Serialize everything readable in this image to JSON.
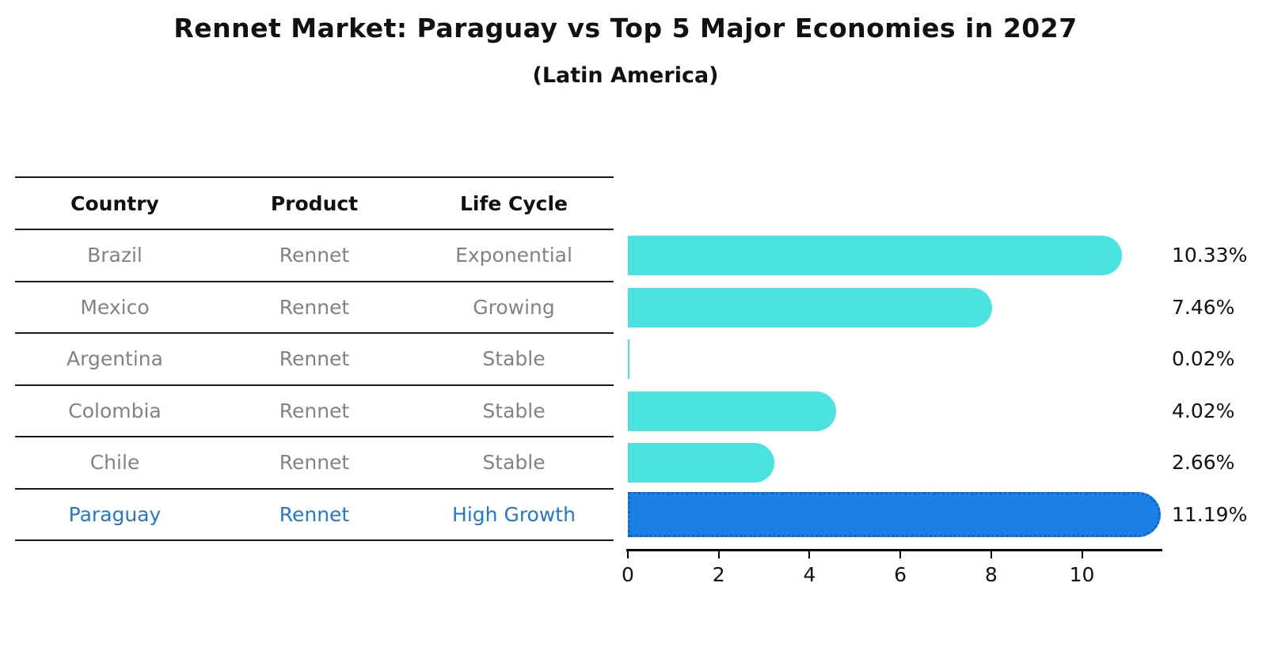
{
  "title": "Rennet Market: Paraguay vs Top 5 Major Economies in 2027",
  "subtitle": "(Latin America)",
  "table": {
    "headers": [
      "Country",
      "Product",
      "Life Cycle"
    ],
    "rows": [
      {
        "country": "Brazil",
        "product": "Rennet",
        "life_cycle": "Exponential",
        "highlight": false
      },
      {
        "country": "Mexico",
        "product": "Rennet",
        "life_cycle": "Growing",
        "highlight": false
      },
      {
        "country": "Argentina",
        "product": "Rennet",
        "life_cycle": "Stable",
        "highlight": false
      },
      {
        "country": "Colombia",
        "product": "Rennet",
        "life_cycle": "Stable",
        "highlight": false
      },
      {
        "country": "Chile",
        "product": "Rennet",
        "life_cycle": "Stable",
        "highlight": false
      },
      {
        "country": "Paraguay",
        "product": "Rennet",
        "life_cycle": "High Growth",
        "highlight": true
      }
    ]
  },
  "chart_data": {
    "type": "bar",
    "orientation": "horizontal",
    "title": "Rennet Market: Paraguay vs Top 5 Major Economies in 2027",
    "subtitle": "(Latin America)",
    "categories": [
      "Brazil",
      "Mexico",
      "Argentina",
      "Colombia",
      "Chile",
      "Paraguay"
    ],
    "values": [
      10.33,
      7.46,
      0.02,
      4.02,
      2.66,
      11.19
    ],
    "value_labels": [
      "10.33%",
      "7.46%",
      "0.02%",
      "4.02%",
      "2.66%",
      "11.19%"
    ],
    "x_ticks": [
      "0",
      "2",
      "4",
      "6",
      "8",
      "10"
    ],
    "xlim": [
      0,
      11.8
    ],
    "grid": false,
    "legend": false,
    "bar_color": "#4ae4e0",
    "highlight_color": "#1b7fe8",
    "highlight_index": 5,
    "highlight_edge_style": "dotted"
  },
  "colors": {
    "title_text": "#111111",
    "table_text": "#828282",
    "highlight_text": "#2478ce",
    "line": "#1a1a1a",
    "axis": "#000000"
  }
}
